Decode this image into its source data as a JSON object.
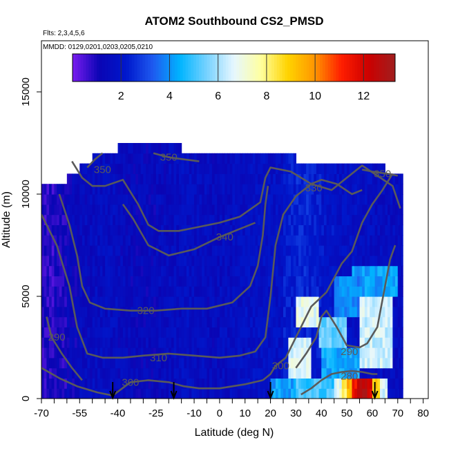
{
  "chart_data": {
    "type": "heatmap",
    "title": "ATOM2 Southbound CS2_PMSD",
    "subtitle_flights": "Flts: 2,3,4,5,6",
    "subtitle_dates": "MMDD: 0129,0201,0203,0205,0210",
    "xlabel": "Latitude (deg N)",
    "ylabel": "Altitude (m)",
    "xlim": [
      -70,
      82
    ],
    "ylim": [
      0,
      17500
    ],
    "x_ticks": [
      -70,
      -55,
      -40,
      -25,
      -10,
      0,
      10,
      20,
      30,
      40,
      50,
      60,
      70,
      80
    ],
    "y_ticks": [
      0,
      5000,
      10000,
      15000
    ],
    "colorbar": {
      "min": 0,
      "max": 13.3,
      "ticks": [
        2,
        4,
        6,
        8,
        10,
        12
      ],
      "colors": [
        "#7a1cf0",
        "#0a05b4",
        "#0018cc",
        "#1e5af0",
        "#00b4ff",
        "#78d2ff",
        "#e6f7ff",
        "#ffffa0",
        "#ffd400",
        "#ff9600",
        "#ff1e00",
        "#cc0000",
        "#a01e1e"
      ],
      "placement": "top inside plot"
    },
    "field": {
      "description_units": "CS2 PMSD value",
      "columns": [
        {
          "x0": -70,
          "x1": -65,
          "zmax": 10500,
          "base": 0.8
        },
        {
          "x0": -65,
          "x1": -60,
          "zmax": 10500,
          "base": 1.0
        },
        {
          "x0": -60,
          "x1": -55,
          "zmax": 11000,
          "base": 1.3
        },
        {
          "x0": -55,
          "x1": -50,
          "zmax": 11500,
          "base": 1.5
        },
        {
          "x0": -50,
          "x1": -45,
          "zmax": 12000,
          "base": 1.6
        },
        {
          "x0": -45,
          "x1": -40,
          "zmax": 12000,
          "base": 1.6
        },
        {
          "x0": -40,
          "x1": -35,
          "zmax": 12500,
          "base": 1.5
        },
        {
          "x0": -35,
          "x1": -30,
          "zmax": 12500,
          "base": 1.4
        },
        {
          "x0": -30,
          "x1": -25,
          "zmax": 12500,
          "base": 1.4
        },
        {
          "x0": -25,
          "x1": -20,
          "zmax": 12500,
          "base": 1.5
        },
        {
          "x0": -20,
          "x1": -15,
          "zmax": 12500,
          "base": 1.6
        },
        {
          "x0": -15,
          "x1": -10,
          "zmax": 12000,
          "base": 1.7
        },
        {
          "x0": -10,
          "x1": -5,
          "zmax": 12000,
          "base": 1.6
        },
        {
          "x0": -5,
          "x1": 0,
          "zmax": 12000,
          "base": 1.5
        },
        {
          "x0": 0,
          "x1": 5,
          "zmax": 12000,
          "base": 1.6
        },
        {
          "x0": 5,
          "x1": 10,
          "zmax": 12000,
          "base": 1.7
        },
        {
          "x0": 10,
          "x1": 15,
          "zmax": 12000,
          "base": 1.8
        },
        {
          "x0": 15,
          "x1": 20,
          "zmax": 12000,
          "base": 1.8
        },
        {
          "x0": 20,
          "x1": 25,
          "zmax": 12000,
          "base": 1.8
        },
        {
          "x0": 25,
          "x1": 30,
          "zmax": 12000,
          "base": 2.2
        },
        {
          "x0": 30,
          "x1": 35,
          "zmax": 11500,
          "base": 2.4
        },
        {
          "x0": 35,
          "x1": 40,
          "zmax": 11500,
          "base": 2.2
        },
        {
          "x0": 40,
          "x1": 45,
          "zmax": 11500,
          "base": 2.0
        },
        {
          "x0": 45,
          "x1": 50,
          "zmax": 11500,
          "base": 1.8
        },
        {
          "x0": 50,
          "x1": 55,
          "zmax": 11500,
          "base": 1.8
        },
        {
          "x0": 55,
          "x1": 60,
          "zmax": 11500,
          "base": 1.7
        },
        {
          "x0": 60,
          "x1": 65,
          "zmax": 11500,
          "base": 1.6
        },
        {
          "x0": 65,
          "x1": 70,
          "zmax": 11000,
          "base": 1.6
        },
        {
          "x0": 70,
          "x1": 72,
          "zmax": 11000,
          "base": 1.6
        }
      ],
      "hotspots": [
        {
          "x0": 27,
          "x1": 36,
          "z0": 1200,
          "z1": 2800,
          "value": 6.6
        },
        {
          "x0": 30,
          "x1": 39,
          "z0": 3500,
          "z1": 4800,
          "value": 6.8
        },
        {
          "x0": 39,
          "x1": 50,
          "z0": 2500,
          "z1": 3800,
          "value": 5.4
        },
        {
          "x0": 40,
          "x1": 55,
          "z0": 800,
          "z1": 2500,
          "value": 4.3
        },
        {
          "x0": 55,
          "x1": 68,
          "z0": 1500,
          "z1": 5000,
          "value": 6.4
        },
        {
          "x0": 52,
          "x1": 70,
          "z0": 5000,
          "z1": 6500,
          "value": 4.2
        },
        {
          "x0": 45,
          "x1": 55,
          "z0": 4000,
          "z1": 6000,
          "value": 3.8
        },
        {
          "x0": 48,
          "x1": 50,
          "z0": 200,
          "z1": 900,
          "value": 8.2
        },
        {
          "x0": 50,
          "x1": 52,
          "z0": 200,
          "z1": 900,
          "value": 9.5
        },
        {
          "x0": 52,
          "x1": 54,
          "z0": 200,
          "z1": 900,
          "value": 11.5
        },
        {
          "x0": 54,
          "x1": 58,
          "z0": 200,
          "z1": 900,
          "value": 12.8
        },
        {
          "x0": 58,
          "x1": 60,
          "z0": 200,
          "z1": 900,
          "value": 11.8
        },
        {
          "x0": 60,
          "x1": 63,
          "z0": 200,
          "z1": 900,
          "value": 9.0
        },
        {
          "x0": 63,
          "x1": 66,
          "z0": 200,
          "z1": 900,
          "value": 6.5
        },
        {
          "x0": 20,
          "x1": 30,
          "z0": 200,
          "z1": 900,
          "value": 4.2
        },
        {
          "x0": 30,
          "x1": 45,
          "z0": 200,
          "z1": 900,
          "value": 5.0
        },
        {
          "x0": 45,
          "x1": 48,
          "z0": 200,
          "z1": 900,
          "value": 6.8
        }
      ]
    },
    "contours": [
      {
        "label": "280",
        "label_x": 51,
        "label_z": 1100,
        "points": [
          [
            32,
            200
          ],
          [
            36,
            500
          ],
          [
            40,
            900
          ],
          [
            44,
            1200
          ],
          [
            48,
            1300
          ],
          [
            52,
            1350
          ],
          [
            56,
            1300
          ],
          [
            60,
            1200
          ],
          [
            62,
            1200
          ]
        ]
      },
      {
        "label": "290",
        "label_x": 51,
        "label_z": 2300,
        "points": [
          [
            30,
            1500
          ],
          [
            34,
            2200
          ],
          [
            38,
            3000
          ],
          [
            40,
            4000
          ],
          [
            42,
            4300
          ],
          [
            46,
            3500
          ],
          [
            50,
            2600
          ],
          [
            55,
            2500
          ],
          [
            58,
            2700
          ],
          [
            62,
            3500
          ],
          [
            65,
            5500
          ],
          [
            67,
            6800
          ],
          [
            69,
            7500
          ]
        ]
      },
      {
        "label": "290",
        "label_x": -64,
        "label_z": 3000,
        "points": [
          [
            -68,
            4000
          ],
          [
            -66,
            3000
          ],
          [
            -62,
            2200
          ],
          [
            -58,
            1500
          ],
          [
            -54,
            900
          ]
        ]
      },
      {
        "label": "300",
        "label_x": -35,
        "label_z": 800,
        "points": [
          [
            -70,
            1500
          ],
          [
            -63,
            1000
          ],
          [
            -56,
            600
          ],
          [
            -48,
            300
          ],
          [
            -42,
            150
          ],
          [
            -35,
            800
          ],
          [
            -28,
            900
          ],
          [
            -20,
            800
          ],
          [
            -14,
            600
          ],
          [
            -8,
            500
          ],
          [
            0,
            500
          ],
          [
            10,
            700
          ],
          [
            17,
            900
          ]
        ]
      },
      {
        "label": "300",
        "label_x": 24,
        "label_z": 1600,
        "points": [
          [
            17,
            900
          ],
          [
            20,
            1200
          ],
          [
            22,
            1600
          ],
          [
            26,
            2000
          ],
          [
            30,
            3000
          ],
          [
            36,
            4500
          ],
          [
            42,
            5200
          ],
          [
            48,
            6600
          ],
          [
            52,
            7200
          ],
          [
            56,
            8600
          ],
          [
            60,
            9500
          ],
          [
            64,
            10200
          ],
          [
            68,
            11000
          ]
        ]
      },
      {
        "label": "310",
        "label_x": -24,
        "label_z": 2000,
        "points": [
          [
            -70,
            9000
          ],
          [
            -64,
            7500
          ],
          [
            -59,
            5500
          ],
          [
            -56,
            3500
          ],
          [
            -52,
            2200
          ],
          [
            -46,
            2000
          ],
          [
            -38,
            2000
          ],
          [
            -30,
            2100
          ],
          [
            -20,
            2200
          ],
          [
            -10,
            2100
          ],
          [
            0,
            2000
          ],
          [
            8,
            2100
          ],
          [
            14,
            2300
          ],
          [
            18,
            3000
          ],
          [
            20,
            5000
          ],
          [
            22,
            7500
          ],
          [
            25,
            9000
          ],
          [
            30,
            9900
          ],
          [
            36,
            10500
          ],
          [
            40,
            10700
          ],
          [
            46,
            10500
          ],
          [
            52,
            10000
          ],
          [
            56,
            10200
          ]
        ]
      },
      {
        "label": "320",
        "label_x": -29,
        "label_z": 4300,
        "points": [
          [
            -63,
            10000
          ],
          [
            -59,
            8500
          ],
          [
            -56,
            7000
          ],
          [
            -54,
            5500
          ],
          [
            -51,
            4700
          ],
          [
            -45,
            4400
          ],
          [
            -35,
            4300
          ],
          [
            -25,
            4300
          ],
          [
            -15,
            4400
          ],
          [
            -5,
            4400
          ],
          [
            5,
            4700
          ],
          [
            12,
            5500
          ],
          [
            15,
            6500
          ],
          [
            17,
            8000
          ],
          [
            18,
            9500
          ],
          [
            19,
            10400
          ]
        ]
      },
      {
        "label": "330",
        "label_x": 37,
        "label_z": 10300,
        "points": [
          [
            -58,
            11600
          ],
          [
            -54,
            10800
          ],
          [
            -50,
            10400
          ],
          [
            -45,
            10400
          ],
          [
            -38,
            10700
          ],
          [
            -32,
            9500
          ],
          [
            -28,
            8500
          ],
          [
            -24,
            8200
          ],
          [
            -16,
            8200
          ],
          [
            -8,
            8400
          ],
          [
            0,
            8600
          ],
          [
            8,
            8900
          ],
          [
            16,
            9600
          ],
          [
            18,
            10800
          ],
          [
            20,
            11300
          ],
          [
            28,
            11100
          ],
          [
            36,
            10500
          ],
          [
            44,
            10200
          ],
          [
            50,
            10800
          ],
          [
            56,
            11400
          ],
          [
            62,
            10900
          ],
          [
            68,
            10400
          ],
          [
            71,
            9300
          ]
        ]
      },
      {
        "label": "340",
        "label_x": 2,
        "label_z": 7900,
        "points": [
          [
            -38,
            9500
          ],
          [
            -34,
            8800
          ],
          [
            -28,
            7500
          ],
          [
            -20,
            7000
          ],
          [
            -10,
            7300
          ],
          [
            0,
            7900
          ],
          [
            8,
            8300
          ],
          [
            14,
            8600
          ]
        ]
      },
      {
        "label": "350",
        "label_x": -46,
        "label_z": 11200,
        "points": [
          [
            -52,
            11300
          ],
          [
            -49,
            11700
          ],
          [
            -46,
            12000
          ]
        ]
      },
      {
        "label": "350",
        "label_x": -20,
        "label_z": 11800,
        "points": [
          [
            -26,
            12000
          ],
          [
            -20,
            11800
          ],
          [
            -14,
            11700
          ],
          [
            -8,
            11600
          ]
        ]
      },
      {
        "label": "350",
        "label_x": 64,
        "label_z": 11000,
        "points": [
          [
            56,
            11200
          ],
          [
            60,
            11100
          ],
          [
            66,
            11000
          ],
          [
            70,
            10900
          ]
        ]
      }
    ],
    "arrows_latitude": [
      -42,
      -18,
      20,
      61
    ]
  }
}
